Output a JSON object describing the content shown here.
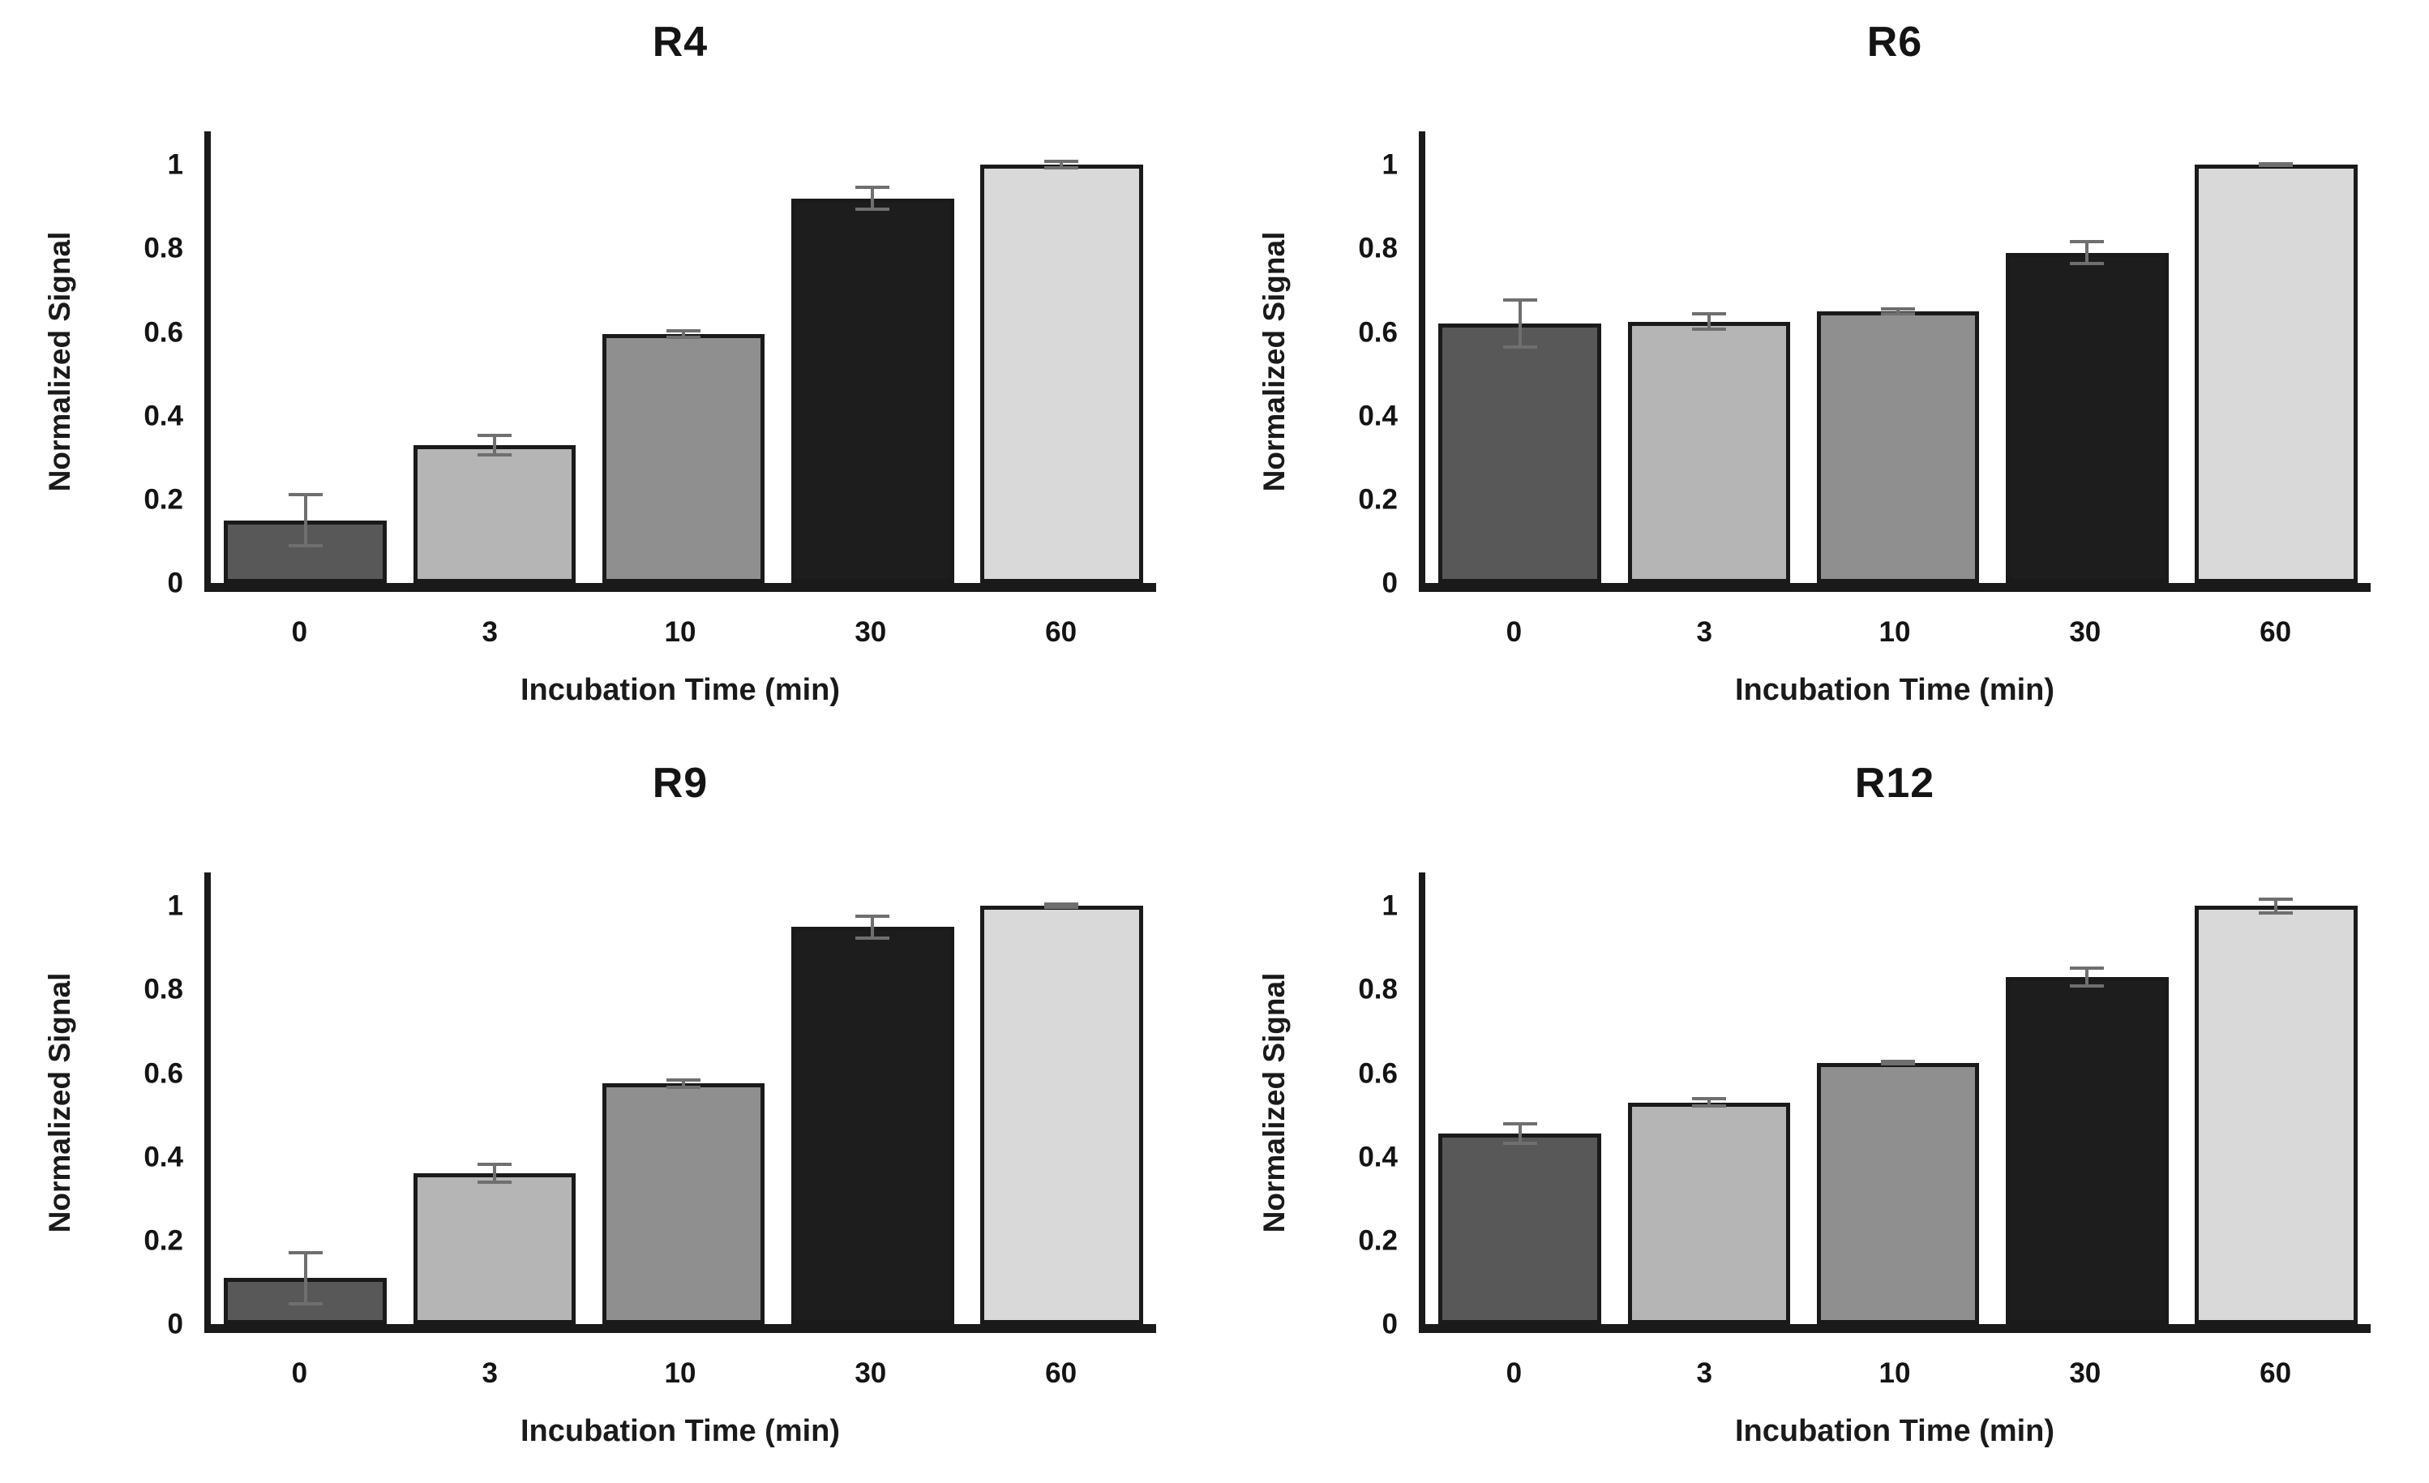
{
  "figure": {
    "background": "#ffffff",
    "layout": "2x2-grid-of-bar-charts"
  },
  "style": {
    "bar_colors": [
      "#585858",
      "#b5b5b5",
      "#8f8f8f",
      "#1d1d1d",
      "#d9d9d9"
    ],
    "bar_border_color": "#1a1a1a",
    "error_bar_color": "#6f6f6f",
    "axis_color": "#1a1a1a",
    "text_color": "#141414"
  },
  "chart_data": [
    {
      "type": "bar",
      "title": "R4",
      "categories": [
        "0",
        "3",
        "10",
        "30",
        "60"
      ],
      "values": [
        0.15,
        0.33,
        0.595,
        0.92,
        1.0
      ],
      "errors": [
        0.065,
        0.027,
        0.012,
        0.03,
        0.012
      ],
      "xlabel": "Incubation Time (min)",
      "ylabel": "Normalized Signal",
      "ylim": [
        0,
        1.08
      ],
      "yticks": [
        0,
        0.2,
        0.4,
        0.6,
        0.8,
        1
      ],
      "ytick_labels": [
        "0",
        "0.2",
        "0.4",
        "0.6",
        "0.8",
        "1"
      ],
      "grid": false,
      "legend": "none"
    },
    {
      "type": "bar",
      "title": "R6",
      "categories": [
        "0",
        "3",
        "10",
        "30",
        "60"
      ],
      "values": [
        0.62,
        0.625,
        0.65,
        0.79,
        1.0
      ],
      "errors": [
        0.06,
        0.022,
        0.01,
        0.03,
        0.006
      ],
      "xlabel": "Incubation Time (min)",
      "ylabel": "Normalized Signal",
      "ylim": [
        0,
        1.08
      ],
      "yticks": [
        0,
        0.2,
        0.4,
        0.6,
        0.8,
        1
      ],
      "ytick_labels": [
        "0",
        "0.2",
        "0.4",
        "0.6",
        "0.8",
        "1"
      ],
      "grid": false,
      "legend": "none"
    },
    {
      "type": "bar",
      "title": "R9",
      "categories": [
        "0",
        "3",
        "10",
        "30",
        "60"
      ],
      "values": [
        0.11,
        0.36,
        0.575,
        0.95,
        1.0
      ],
      "errors": [
        0.065,
        0.025,
        0.012,
        0.03,
        0.008
      ],
      "xlabel": "Incubation Time (min)",
      "ylabel": "Normalized Signal",
      "ylim": [
        0,
        1.08
      ],
      "yticks": [
        0,
        0.2,
        0.4,
        0.6,
        0.8,
        1
      ],
      "ytick_labels": [
        "0",
        "0.2",
        "0.4",
        "0.6",
        "0.8",
        "1"
      ],
      "grid": false,
      "legend": "none"
    },
    {
      "type": "bar",
      "title": "R12",
      "categories": [
        "0",
        "3",
        "10",
        "30",
        "60"
      ],
      "values": [
        0.455,
        0.53,
        0.625,
        0.83,
        1.0
      ],
      "errors": [
        0.027,
        0.012,
        0.007,
        0.025,
        0.02
      ],
      "xlabel": "Incubation Time (min)",
      "ylabel": "Normalized Signal",
      "ylim": [
        0,
        1.08
      ],
      "yticks": [
        0,
        0.2,
        0.4,
        0.6,
        0.8,
        1
      ],
      "ytick_labels": [
        "0",
        "0.2",
        "0.4",
        "0.6",
        "0.8",
        "1"
      ],
      "grid": false,
      "legend": "none"
    }
  ]
}
